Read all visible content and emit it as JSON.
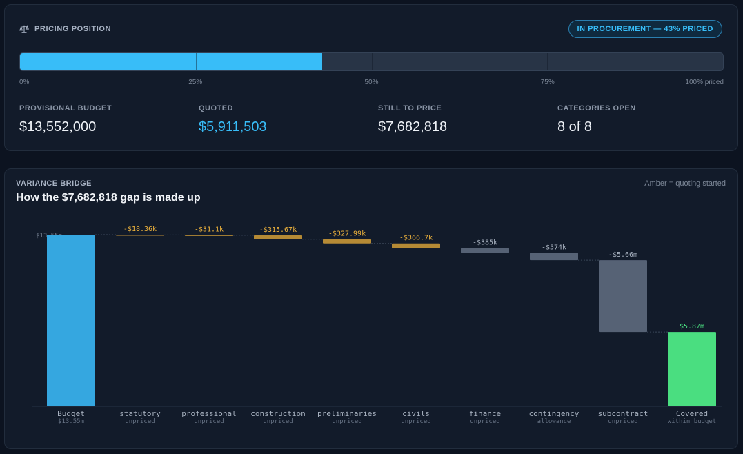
{
  "pricing": {
    "title": "PRICING POSITION",
    "icon": "scale-icon",
    "badge": "IN PROCUREMENT — 43% PRICED",
    "progress_fraction": 0.43,
    "scale_labels": [
      "0%",
      "25%",
      "50%",
      "75%",
      "100% priced"
    ],
    "stats": [
      {
        "label": "PROVISIONAL BUDGET",
        "value": "$13,552,000"
      },
      {
        "label": "QUOTED",
        "value": "$5,911,503"
      },
      {
        "label": "STILL TO PRICE",
        "value": "$7,682,818"
      },
      {
        "label": "CATEGORIES OPEN",
        "value": "8 of 8"
      }
    ],
    "colors": {
      "accent": "#38bdf8",
      "track": "#283446"
    }
  },
  "bridge": {
    "subtitle": "VARIANCE BRIDGE",
    "title": "How the $7,682,818 gap is made up",
    "note": "Amber = quoting started"
  },
  "chart_data": {
    "type": "waterfall",
    "ylim": [
      0,
      13.55
    ],
    "start": {
      "label": "Budget",
      "sublabel": "$13.55m",
      "value": 13.55,
      "value_label": "$13.55m",
      "color": "#35a7e0"
    },
    "steps": [
      {
        "label": "statutory",
        "sublabel": "unpriced",
        "value": -0.01836,
        "value_label": "-$18.36k",
        "status": "amber"
      },
      {
        "label": "professional",
        "sublabel": "unpriced",
        "value": -0.0311,
        "value_label": "-$31.1k",
        "status": "amber"
      },
      {
        "label": "construction",
        "sublabel": "unpriced",
        "value": -0.31567,
        "value_label": "-$315.67k",
        "status": "amber"
      },
      {
        "label": "preliminaries",
        "sublabel": "unpriced",
        "value": -0.32799,
        "value_label": "-$327.99k",
        "status": "amber"
      },
      {
        "label": "civils",
        "sublabel": "unpriced",
        "value": -0.3667,
        "value_label": "-$366.7k",
        "status": "amber"
      },
      {
        "label": "finance",
        "sublabel": "unpriced",
        "value": -0.385,
        "value_label": "-$385k",
        "status": "grey"
      },
      {
        "label": "contingency",
        "sublabel": "allowance",
        "value": -0.574,
        "value_label": "-$574k",
        "status": "grey"
      },
      {
        "label": "subcontract",
        "sublabel": "unpriced",
        "value": -5.66,
        "value_label": "-$5.66m",
        "status": "grey"
      }
    ],
    "end": {
      "label": "Covered",
      "sublabel": "within budget",
      "value": 5.87,
      "value_label": "$5.87m",
      "color": "#4ade80"
    },
    "colors": {
      "amber": "#b58a35",
      "amber_text": "#f0b43c",
      "grey": "#566275",
      "grey_text": "#a9b3c1",
      "end_text": "#4ade80"
    }
  }
}
